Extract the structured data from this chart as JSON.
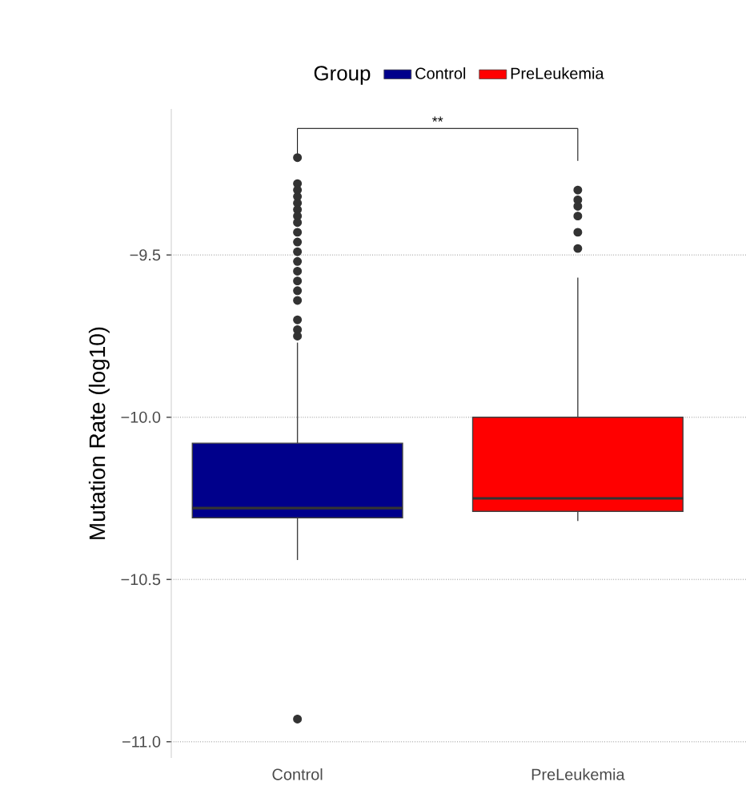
{
  "chart_data": {
    "type": "box",
    "ylabel": "Mutation Rate (log10)",
    "legend_title": "Group",
    "legend": "top",
    "grid": "y",
    "categories": [
      "Control",
      "PreLeukemia"
    ],
    "series": [
      {
        "name": "Control",
        "color": "#00008b",
        "boxes": [
          {
            "low": -10.44,
            "q1": -10.31,
            "median": -10.28,
            "q3": -10.08,
            "high": -9.77,
            "outliers": [
              -9.2,
              -9.28,
              -9.3,
              -9.32,
              -9.34,
              -9.36,
              -9.38,
              -9.4,
              -9.43,
              -9.46,
              -9.49,
              -9.52,
              -9.55,
              -9.58,
              -9.61,
              -9.64,
              -9.7,
              -9.73,
              -9.75,
              -10.93
            ]
          },
          null
        ]
      },
      {
        "name": "PreLeukemia",
        "color": "#ff0000",
        "boxes": [
          null,
          {
            "low": -10.32,
            "q1": -10.29,
            "median": -10.25,
            "q3": -10.0,
            "high": -9.57,
            "outliers": [
              -9.3,
              -9.33,
              -9.35,
              -9.38,
              -9.43,
              -9.48
            ]
          }
        ]
      }
    ],
    "ylim": [
      -11.05,
      -9.05
    ],
    "yticks": [
      {
        "value": -11.0,
        "label": "−11.0"
      },
      {
        "value": -10.5,
        "label": "−10.5"
      },
      {
        "value": -10.0,
        "label": "−10.0"
      },
      {
        "value": -9.5,
        "label": "−9.5"
      }
    ],
    "annotations": [
      "**"
    ]
  }
}
